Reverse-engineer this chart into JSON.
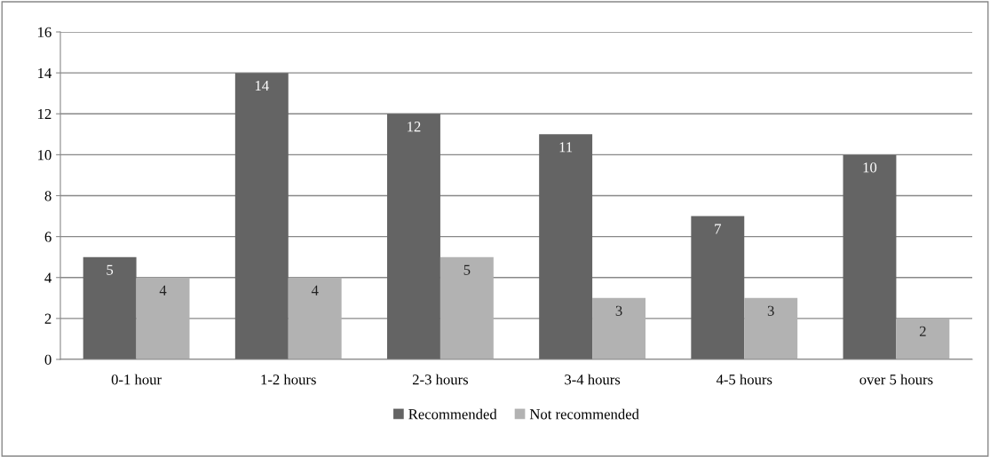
{
  "chart_data": {
    "type": "bar",
    "categories": [
      "0-1 hour",
      "1-2 hours",
      "2-3 hours",
      "3-4 hours",
      "4-5 hours",
      "over 5 hours"
    ],
    "series": [
      {
        "name": "Recommended",
        "color": "#646464",
        "values": [
          5,
          14,
          12,
          11,
          7,
          10
        ]
      },
      {
        "name": "Not recommended",
        "color": "#b2b2b2",
        "values": [
          4,
          4,
          5,
          3,
          3,
          2
        ]
      }
    ],
    "ylim": [
      0,
      16
    ],
    "yticks": [
      0,
      2,
      4,
      6,
      8,
      10,
      12,
      14,
      16
    ],
    "grid": "y",
    "legend": "bottom",
    "data_labels": true
  }
}
